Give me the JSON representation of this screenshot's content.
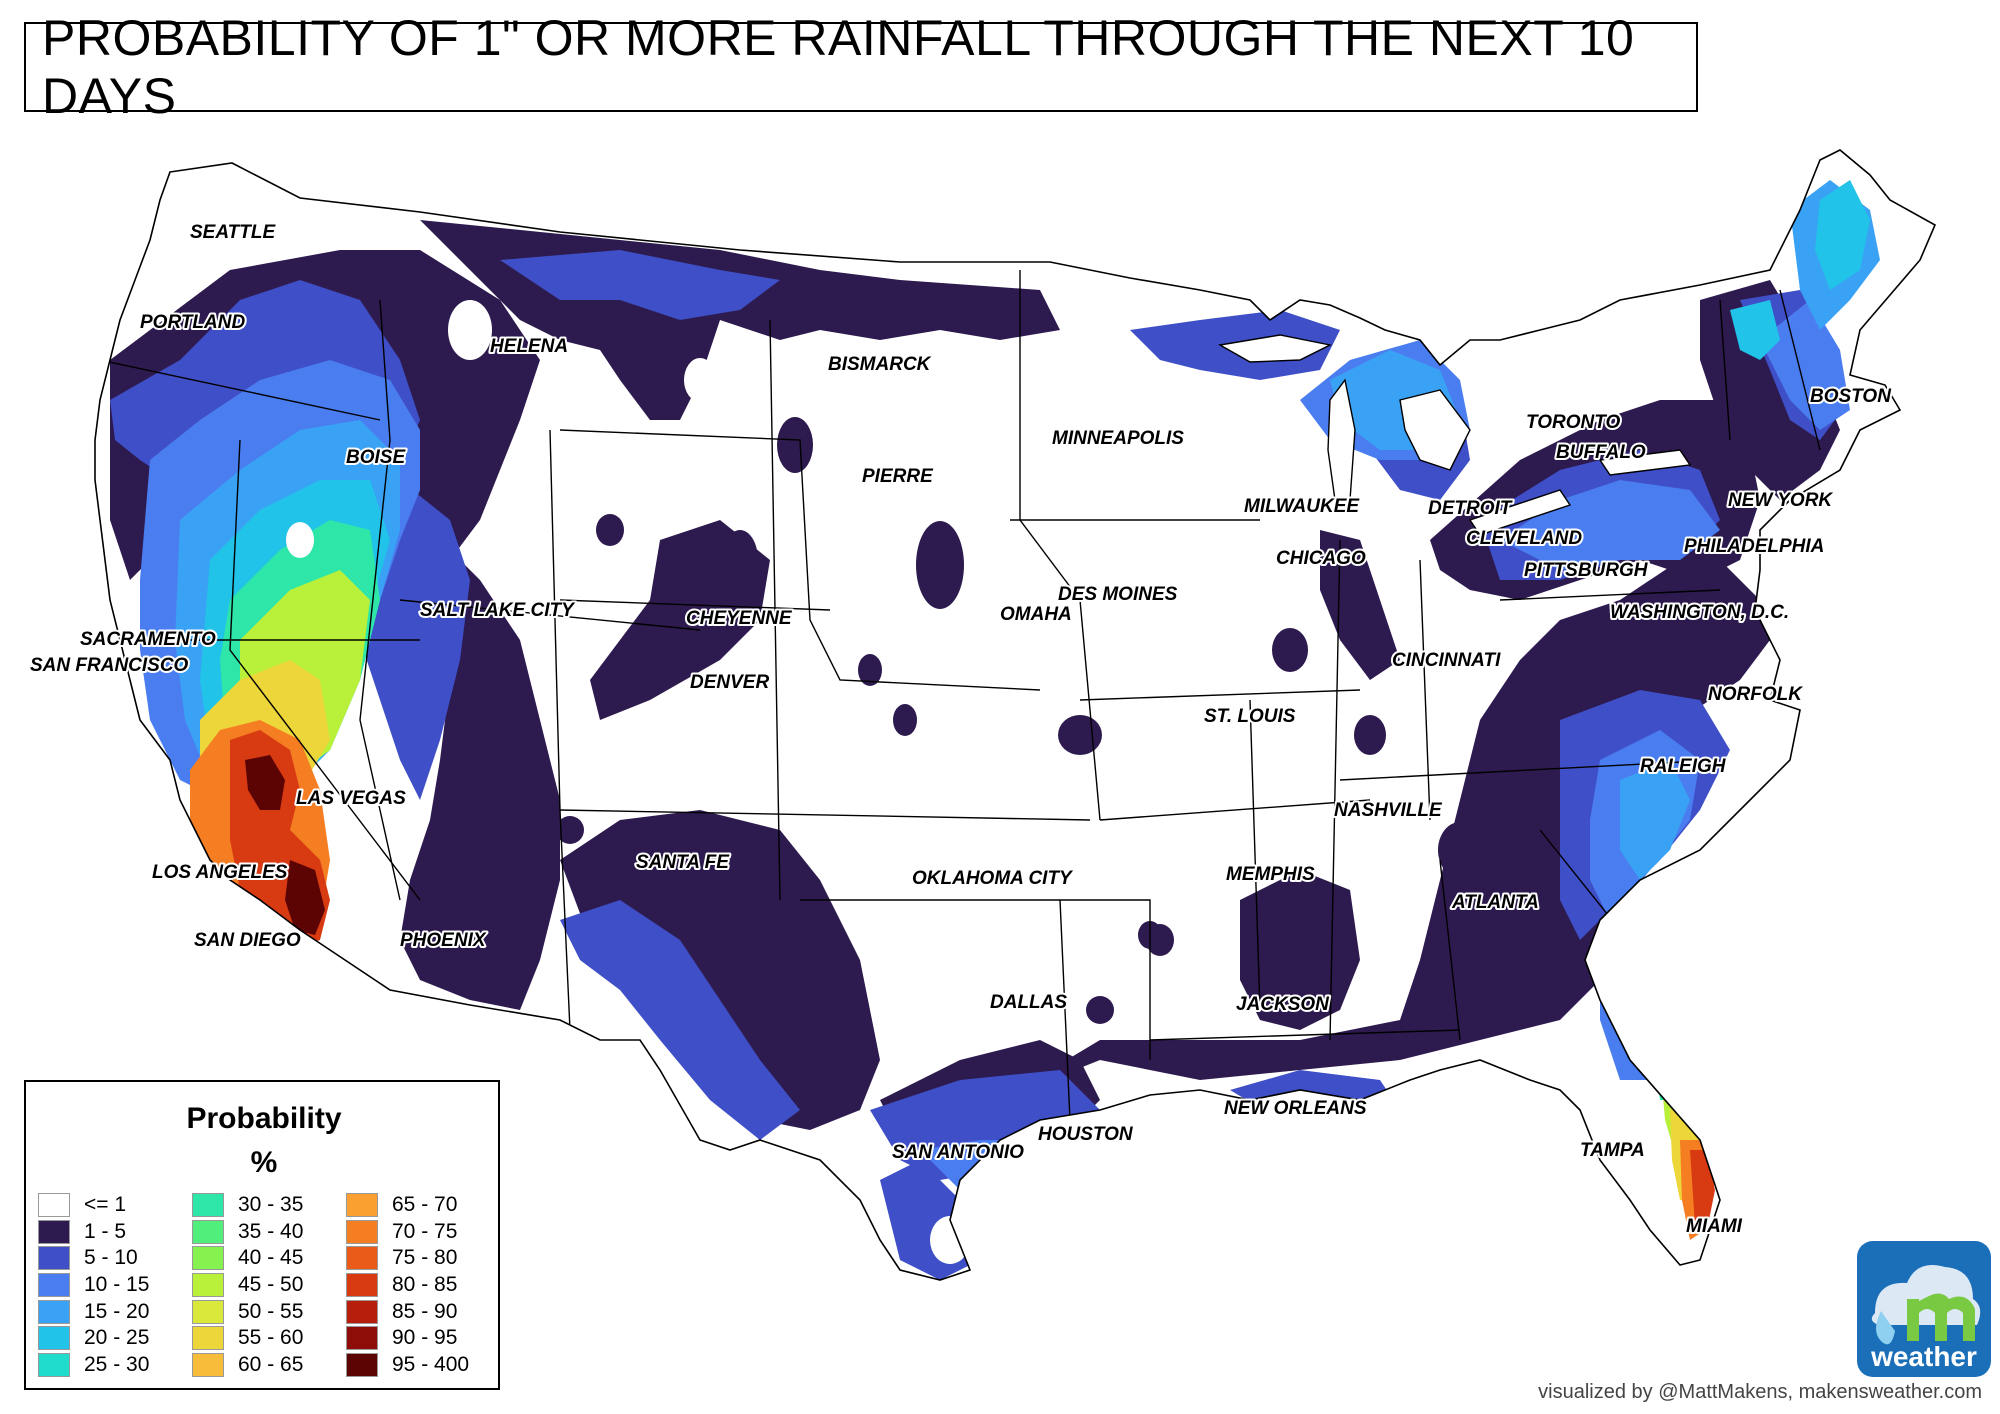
{
  "title": "PROBABILITY OF 1\" OR MORE RAINFALL THROUGH THE NEXT 10 DAYS",
  "cities": [
    {
      "name": "SEATTLE"
    },
    {
      "name": "PORTLAND"
    },
    {
      "name": "HELENA"
    },
    {
      "name": "BISMARCK"
    },
    {
      "name": "BOISE"
    },
    {
      "name": "PIERRE"
    },
    {
      "name": "MINNEAPOLIS"
    },
    {
      "name": "TORONTO"
    },
    {
      "name": "BUFFALO"
    },
    {
      "name": "BOSTON"
    },
    {
      "name": "MILWAUKEE"
    },
    {
      "name": "DETROIT"
    },
    {
      "name": "NEW YORK"
    },
    {
      "name": "CLEVELAND"
    },
    {
      "name": "CHICAGO"
    },
    {
      "name": "PITTSBURGH"
    },
    {
      "name": "PHILADELPHIA"
    },
    {
      "name": "SALT LAKE CITY"
    },
    {
      "name": "DES MOINES"
    },
    {
      "name": "CHEYENNE"
    },
    {
      "name": "OMAHA"
    },
    {
      "name": "WASHINGTON,  D.C."
    },
    {
      "name": "SACRAMENTO"
    },
    {
      "name": "SAN FRANCISCO"
    },
    {
      "name": "DENVER"
    },
    {
      "name": "CINCINNATI"
    },
    {
      "name": "NORFOLK"
    },
    {
      "name": "ST. LOUIS"
    },
    {
      "name": "RALEIGH"
    },
    {
      "name": "LAS VEGAS"
    },
    {
      "name": "NASHVILLE"
    },
    {
      "name": "SANTA FE"
    },
    {
      "name": "LOS ANGELES"
    },
    {
      "name": "OKLAHOMA CITY"
    },
    {
      "name": "MEMPHIS"
    },
    {
      "name": "ATLANTA"
    },
    {
      "name": "SAN DIEGO"
    },
    {
      "name": "PHOENIX"
    },
    {
      "name": "DALLAS"
    },
    {
      "name": "JACKSON"
    },
    {
      "name": "NEW ORLEANS"
    },
    {
      "name": "HOUSTON"
    },
    {
      "name": "SAN ANTONIO"
    },
    {
      "name": "TAMPA"
    },
    {
      "name": "MIAMI"
    }
  ],
  "legend": {
    "title": "Probability",
    "unit": "%",
    "items": [
      {
        "label": "<= 1",
        "color": "#ffffff"
      },
      {
        "label": "1 - 5",
        "color": "#2d1a4e"
      },
      {
        "label": "5 - 10",
        "color": "#3f4fc7"
      },
      {
        "label": "10 - 15",
        "color": "#4a7ef0"
      },
      {
        "label": "15 - 20",
        "color": "#3aa2f5"
      },
      {
        "label": "20 - 25",
        "color": "#22c3e8"
      },
      {
        "label": "25 - 30",
        "color": "#1fdccd"
      },
      {
        "label": "30 - 35",
        "color": "#2ee6a8"
      },
      {
        "label": "35 - 40",
        "color": "#52ee7c"
      },
      {
        "label": "40 - 45",
        "color": "#86f250"
      },
      {
        "label": "45 - 50",
        "color": "#b8f03a"
      },
      {
        "label": "50 - 55",
        "color": "#d9e83a"
      },
      {
        "label": "55 - 60",
        "color": "#ecd63a"
      },
      {
        "label": "60 - 65",
        "color": "#f7bc3a"
      },
      {
        "label": "65 - 70",
        "color": "#f9a030"
      },
      {
        "label": "70 - 75",
        "color": "#f57d22"
      },
      {
        "label": "75 - 80",
        "color": "#ea5a18"
      },
      {
        "label": "80 - 85",
        "color": "#d83a12"
      },
      {
        "label": "85 - 90",
        "color": "#b81e0c"
      },
      {
        "label": "90 - 95",
        "color": "#8e0d08"
      },
      {
        "label": "95 - 400",
        "color": "#5c0404"
      }
    ]
  },
  "credit": "visualized by @MattMakens, makensweather.com",
  "logo": {
    "text": "weather",
    "icon": "makens-weather-logo-icon"
  }
}
